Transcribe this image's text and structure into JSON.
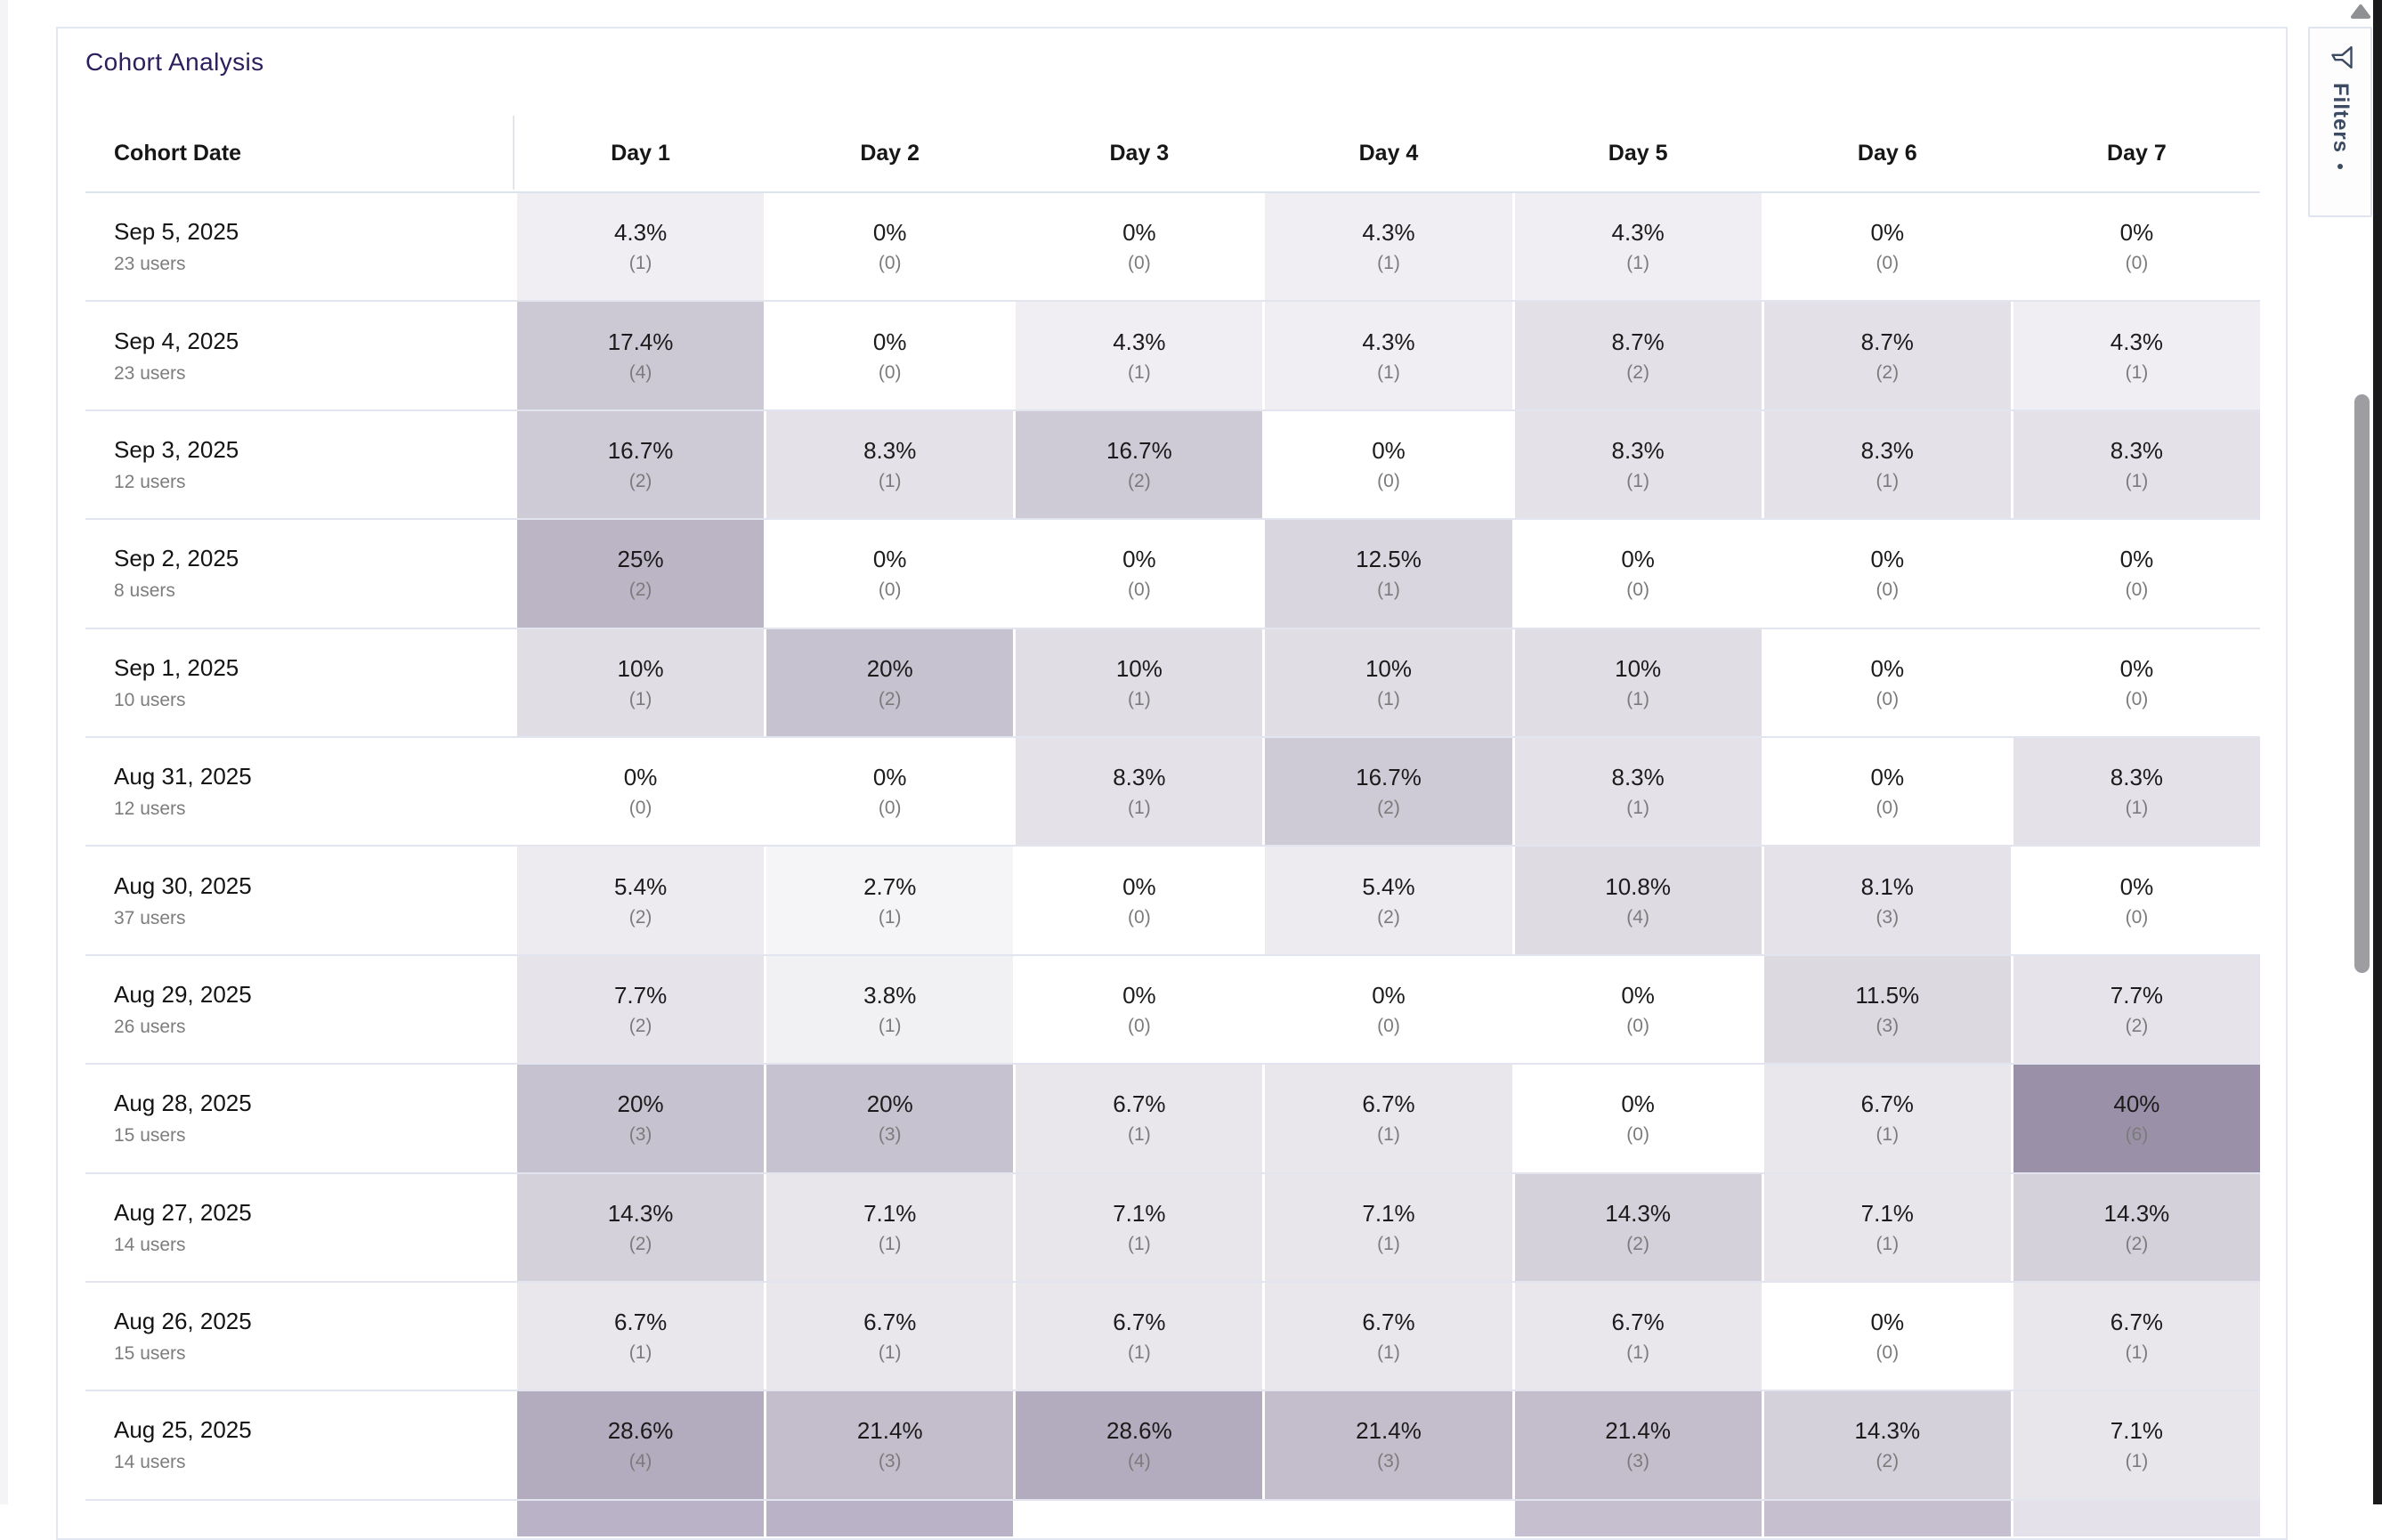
{
  "page": {
    "title": "Cohort Analysis"
  },
  "filters": {
    "label": "Filters"
  },
  "table": {
    "columns": [
      "Cohort Date",
      "Day 1",
      "Day 2",
      "Day 3",
      "Day 4",
      "Day 5",
      "Day 6",
      "Day 7"
    ],
    "heat_scale": {
      "zero_color": "#ffffff",
      "max_color": "#9a91a8",
      "max_value": 40,
      "exponent": 0.85
    },
    "rows": [
      {
        "date": "Sep 5, 2025",
        "users": "23 users",
        "cells": [
          {
            "pct": "4.3%",
            "count": "(1)",
            "value": 4.3
          },
          {
            "pct": "0%",
            "count": "(0)",
            "value": 0
          },
          {
            "pct": "0%",
            "count": "(0)",
            "value": 0
          },
          {
            "pct": "4.3%",
            "count": "(1)",
            "value": 4.3
          },
          {
            "pct": "4.3%",
            "count": "(1)",
            "value": 4.3
          },
          {
            "pct": "0%",
            "count": "(0)",
            "value": 0
          },
          {
            "pct": "0%",
            "count": "(0)",
            "value": 0
          }
        ]
      },
      {
        "date": "Sep 4, 2025",
        "users": "23 users",
        "cells": [
          {
            "pct": "17.4%",
            "count": "(4)",
            "value": 17.4
          },
          {
            "pct": "0%",
            "count": "(0)",
            "value": 0
          },
          {
            "pct": "4.3%",
            "count": "(1)",
            "value": 4.3
          },
          {
            "pct": "4.3%",
            "count": "(1)",
            "value": 4.3
          },
          {
            "pct": "8.7%",
            "count": "(2)",
            "value": 8.7
          },
          {
            "pct": "8.7%",
            "count": "(2)",
            "value": 8.7
          },
          {
            "pct": "4.3%",
            "count": "(1)",
            "value": 4.3
          }
        ]
      },
      {
        "date": "Sep 3, 2025",
        "users": "12 users",
        "cells": [
          {
            "pct": "16.7%",
            "count": "(2)",
            "value": 16.7
          },
          {
            "pct": "8.3%",
            "count": "(1)",
            "value": 8.3
          },
          {
            "pct": "16.7%",
            "count": "(2)",
            "value": 16.7
          },
          {
            "pct": "0%",
            "count": "(0)",
            "value": 0
          },
          {
            "pct": "8.3%",
            "count": "(1)",
            "value": 8.3
          },
          {
            "pct": "8.3%",
            "count": "(1)",
            "value": 8.3
          },
          {
            "pct": "8.3%",
            "count": "(1)",
            "value": 8.3
          }
        ]
      },
      {
        "date": "Sep 2, 2025",
        "users": "8 users",
        "cells": [
          {
            "pct": "25%",
            "count": "(2)",
            "value": 25
          },
          {
            "pct": "0%",
            "count": "(0)",
            "value": 0
          },
          {
            "pct": "0%",
            "count": "(0)",
            "value": 0
          },
          {
            "pct": "12.5%",
            "count": "(1)",
            "value": 12.5
          },
          {
            "pct": "0%",
            "count": "(0)",
            "value": 0
          },
          {
            "pct": "0%",
            "count": "(0)",
            "value": 0
          },
          {
            "pct": "0%",
            "count": "(0)",
            "value": 0
          }
        ]
      },
      {
        "date": "Sep 1, 2025",
        "users": "10 users",
        "cells": [
          {
            "pct": "10%",
            "count": "(1)",
            "value": 10
          },
          {
            "pct": "20%",
            "count": "(2)",
            "value": 20
          },
          {
            "pct": "10%",
            "count": "(1)",
            "value": 10
          },
          {
            "pct": "10%",
            "count": "(1)",
            "value": 10
          },
          {
            "pct": "10%",
            "count": "(1)",
            "value": 10
          },
          {
            "pct": "0%",
            "count": "(0)",
            "value": 0
          },
          {
            "pct": "0%",
            "count": "(0)",
            "value": 0
          }
        ]
      },
      {
        "date": "Aug 31, 2025",
        "users": "12 users",
        "cells": [
          {
            "pct": "0%",
            "count": "(0)",
            "value": 0
          },
          {
            "pct": "0%",
            "count": "(0)",
            "value": 0
          },
          {
            "pct": "8.3%",
            "count": "(1)",
            "value": 8.3
          },
          {
            "pct": "16.7%",
            "count": "(2)",
            "value": 16.7
          },
          {
            "pct": "8.3%",
            "count": "(1)",
            "value": 8.3
          },
          {
            "pct": "0%",
            "count": "(0)",
            "value": 0
          },
          {
            "pct": "8.3%",
            "count": "(1)",
            "value": 8.3
          }
        ]
      },
      {
        "date": "Aug 30, 2025",
        "users": "37 users",
        "cells": [
          {
            "pct": "5.4%",
            "count": "(2)",
            "value": 5.4
          },
          {
            "pct": "2.7%",
            "count": "(1)",
            "value": 2.7
          },
          {
            "pct": "0%",
            "count": "(0)",
            "value": 0
          },
          {
            "pct": "5.4%",
            "count": "(2)",
            "value": 5.4
          },
          {
            "pct": "10.8%",
            "count": "(4)",
            "value": 10.8
          },
          {
            "pct": "8.1%",
            "count": "(3)",
            "value": 8.1
          },
          {
            "pct": "0%",
            "count": "(0)",
            "value": 0
          }
        ]
      },
      {
        "date": "Aug 29, 2025",
        "users": "26 users",
        "cells": [
          {
            "pct": "7.7%",
            "count": "(2)",
            "value": 7.7
          },
          {
            "pct": "3.8%",
            "count": "(1)",
            "value": 3.8
          },
          {
            "pct": "0%",
            "count": "(0)",
            "value": 0
          },
          {
            "pct": "0%",
            "count": "(0)",
            "value": 0
          },
          {
            "pct": "0%",
            "count": "(0)",
            "value": 0
          },
          {
            "pct": "11.5%",
            "count": "(3)",
            "value": 11.5
          },
          {
            "pct": "7.7%",
            "count": "(2)",
            "value": 7.7
          }
        ]
      },
      {
        "date": "Aug 28, 2025",
        "users": "15 users",
        "cells": [
          {
            "pct": "20%",
            "count": "(3)",
            "value": 20
          },
          {
            "pct": "20%",
            "count": "(3)",
            "value": 20
          },
          {
            "pct": "6.7%",
            "count": "(1)",
            "value": 6.7
          },
          {
            "pct": "6.7%",
            "count": "(1)",
            "value": 6.7
          },
          {
            "pct": "0%",
            "count": "(0)",
            "value": 0
          },
          {
            "pct": "6.7%",
            "count": "(1)",
            "value": 6.7
          },
          {
            "pct": "40%",
            "count": "(6)",
            "value": 40
          }
        ]
      },
      {
        "date": "Aug 27, 2025",
        "users": "14 users",
        "cells": [
          {
            "pct": "14.3%",
            "count": "(2)",
            "value": 14.3
          },
          {
            "pct": "7.1%",
            "count": "(1)",
            "value": 7.1
          },
          {
            "pct": "7.1%",
            "count": "(1)",
            "value": 7.1
          },
          {
            "pct": "7.1%",
            "count": "(1)",
            "value": 7.1
          },
          {
            "pct": "14.3%",
            "count": "(2)",
            "value": 14.3
          },
          {
            "pct": "7.1%",
            "count": "(1)",
            "value": 7.1
          },
          {
            "pct": "14.3%",
            "count": "(2)",
            "value": 14.3
          }
        ]
      },
      {
        "date": "Aug 26, 2025",
        "users": "15 users",
        "cells": [
          {
            "pct": "6.7%",
            "count": "(1)",
            "value": 6.7
          },
          {
            "pct": "6.7%",
            "count": "(1)",
            "value": 6.7
          },
          {
            "pct": "6.7%",
            "count": "(1)",
            "value": 6.7
          },
          {
            "pct": "6.7%",
            "count": "(1)",
            "value": 6.7
          },
          {
            "pct": "6.7%",
            "count": "(1)",
            "value": 6.7
          },
          {
            "pct": "0%",
            "count": "(0)",
            "value": 0
          },
          {
            "pct": "6.7%",
            "count": "(1)",
            "value": 6.7
          }
        ]
      },
      {
        "date": "Aug 25, 2025",
        "users": "14 users",
        "cells": [
          {
            "pct": "28.6%",
            "count": "(4)",
            "value": 28.6
          },
          {
            "pct": "21.4%",
            "count": "(3)",
            "value": 21.4
          },
          {
            "pct": "28.6%",
            "count": "(4)",
            "value": 28.6
          },
          {
            "pct": "21.4%",
            "count": "(3)",
            "value": 21.4
          },
          {
            "pct": "21.4%",
            "count": "(3)",
            "value": 21.4
          },
          {
            "pct": "14.3%",
            "count": "(2)",
            "value": 14.3
          },
          {
            "pct": "7.1%",
            "count": "(1)",
            "value": 7.1
          }
        ]
      }
    ],
    "partial_next_row": {
      "cell_colors": [
        "#bab2c6",
        "#bab2c6",
        "#ffffff",
        "#ffffff",
        "#c6bfcf",
        "#c6bfcf",
        "#e4e1ea"
      ]
    }
  }
}
